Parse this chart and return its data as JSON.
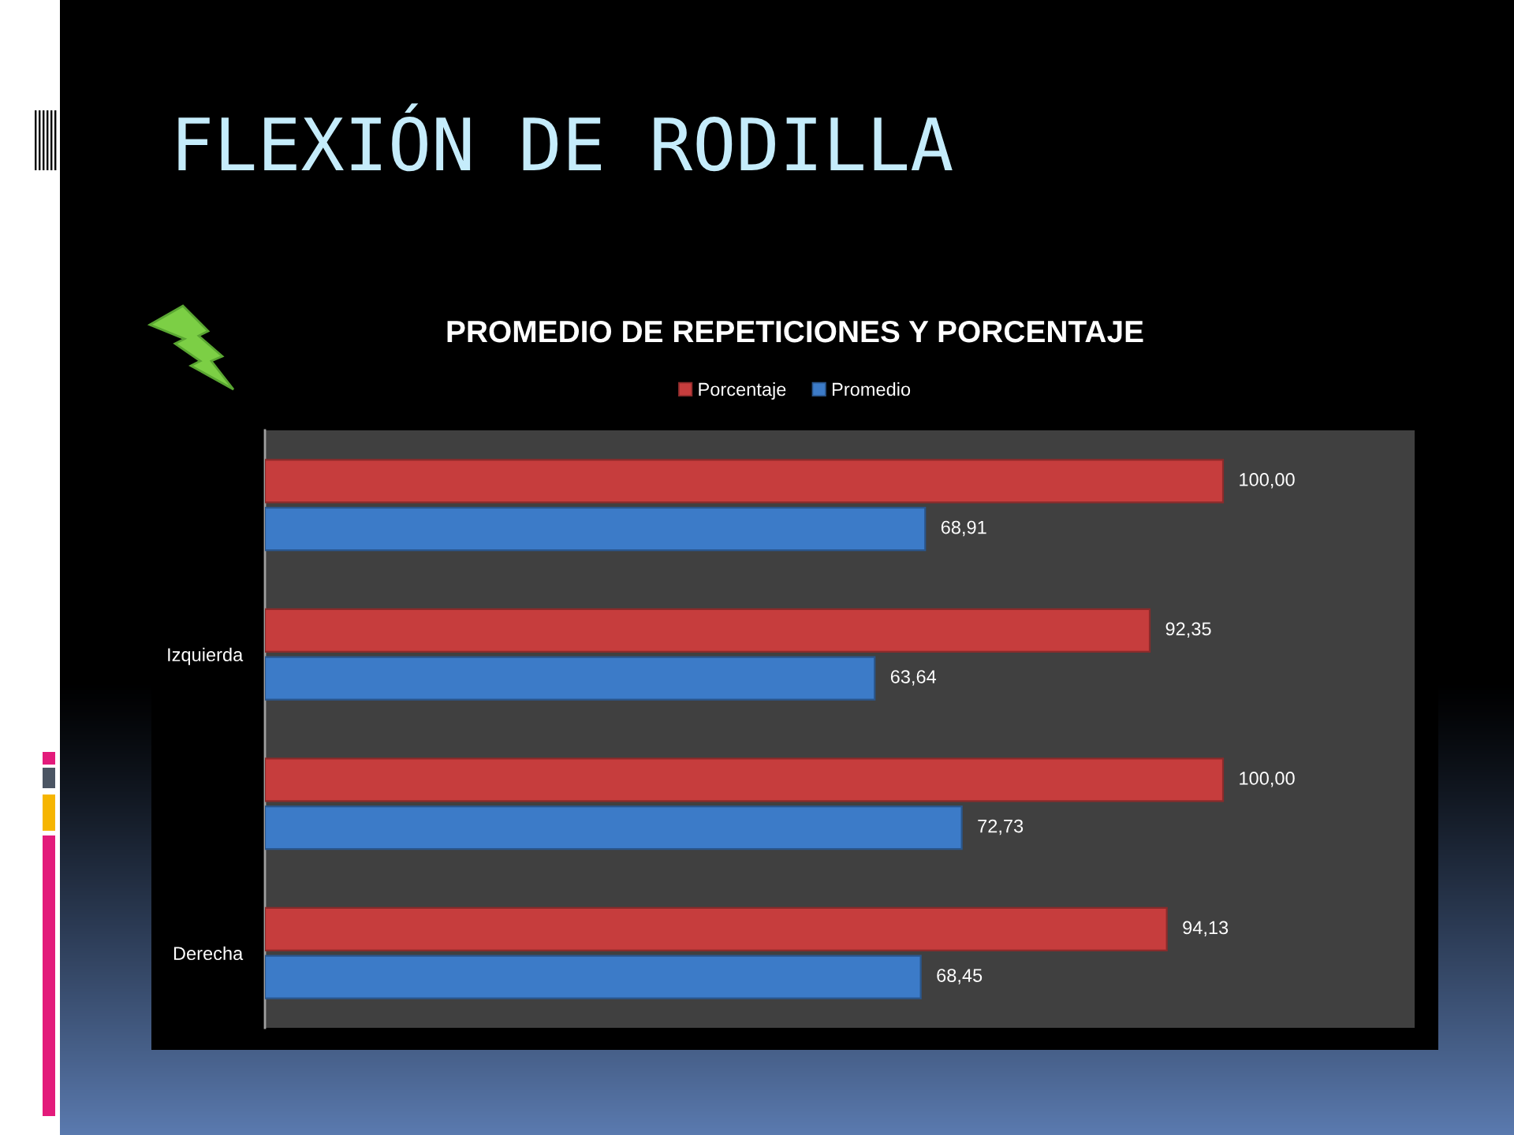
{
  "chart_data": {
    "type": "bar",
    "orientation": "horizontal",
    "title": "FLEXIÓN DE RODILLA",
    "subtitle": "PROMEDIO DE REPETICIONES Y PORCENTAJE",
    "categories": [
      null,
      "Izquierda",
      null,
      "Derecha"
    ],
    "series": [
      {
        "name": "Porcentaje",
        "color": "#c63d3d",
        "values": [
          100,
          92.35,
          100,
          94.13
        ],
        "value_labels": [
          "100,00",
          "92,35",
          "100,00",
          "94,13"
        ]
      },
      {
        "name": "Promedio",
        "color": "#3c7bc8",
        "values": [
          68.91,
          63.64,
          72.73,
          68.45
        ],
        "value_labels": [
          "68,91",
          "63,64",
          "72,73",
          "68,45"
        ]
      }
    ],
    "xlim": [
      0,
      120
    ],
    "tick_labels": "y",
    "legend": "top"
  }
}
